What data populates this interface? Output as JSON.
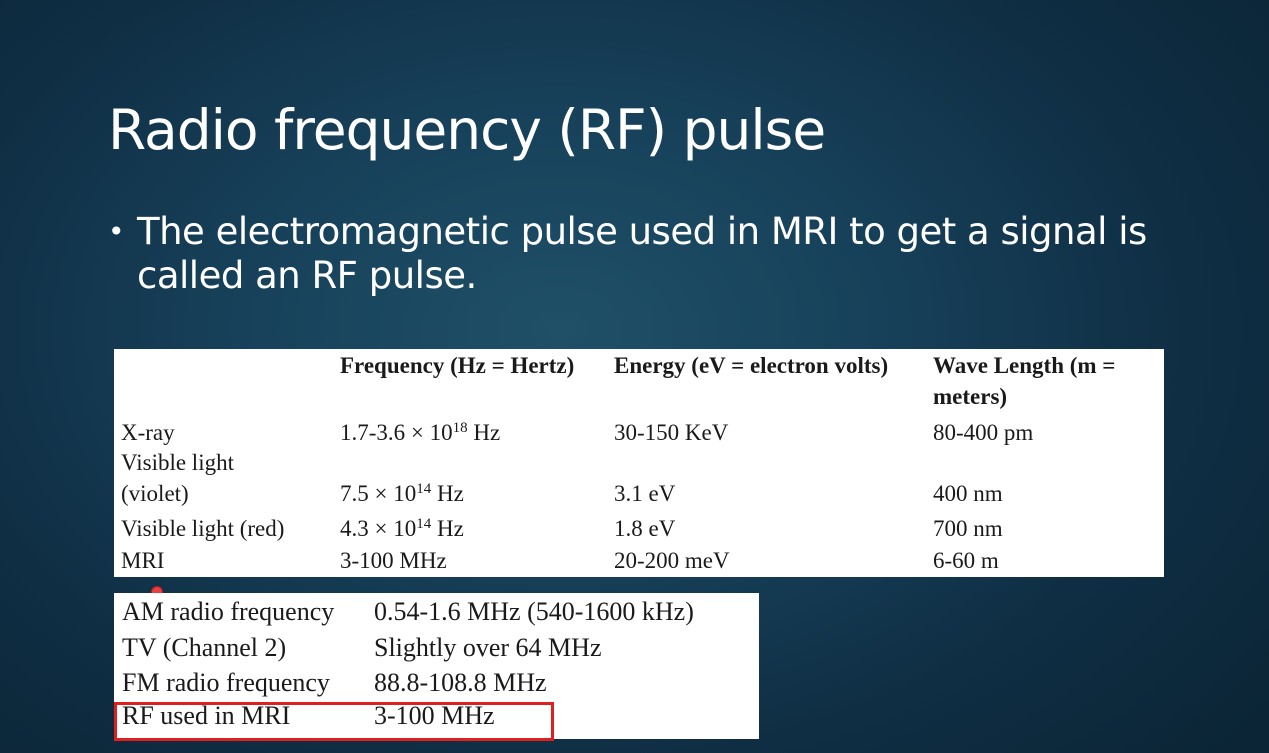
{
  "slide": {
    "title": "Radio frequency (RF) pulse",
    "bullet_symbol": "•",
    "bullet_text": "The electromagnetic pulse used in MRI to get a signal is called an RF pulse."
  },
  "table1": {
    "headers": {
      "frequency": "Frequency (Hz = Hertz)",
      "energy": "Energy (eV = electron volts)",
      "wavelength": "Wave Length (m = meters)"
    },
    "rows": [
      {
        "name": "X-ray",
        "freq_base": "1.7-3.6 × 10",
        "freq_exp": "18",
        "freq_unit": " Hz",
        "energy": "30-150 KeV",
        "wavelength": "80-400 pm"
      },
      {
        "name_line1": "Visible light",
        "name_line2": "(violet)",
        "freq_base": "7.5 × 10",
        "freq_exp": "14",
        "freq_unit": " Hz",
        "energy": "3.1 eV",
        "wavelength": "400 nm"
      },
      {
        "name": "Visible light (red)",
        "freq_base": "4.3 × 10",
        "freq_exp": "14",
        "freq_unit": " Hz",
        "energy": "1.8 eV",
        "wavelength": "700 nm"
      },
      {
        "name": "MRI",
        "freq": "3-100 MHz",
        "energy": "20-200 meV",
        "wavelength": "6-60 m"
      }
    ]
  },
  "table2": {
    "rows": [
      {
        "label": "AM radio frequency",
        "value": "0.54-1.6 MHz (540-1600 kHz)"
      },
      {
        "label": "TV (Channel 2)",
        "value": "Slightly over 64 MHz"
      },
      {
        "label": "FM radio frequency",
        "value": "88.8-108.8 MHz"
      },
      {
        "label": "RF used in MRI",
        "value": "3-100 MHz"
      }
    ],
    "highlight_color": "#e02020"
  }
}
